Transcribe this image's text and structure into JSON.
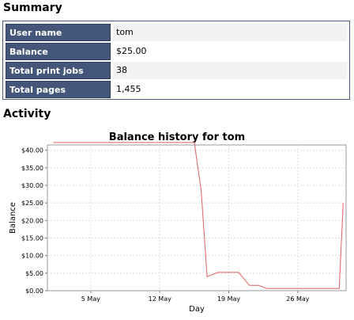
{
  "summary": {
    "title": "Summary",
    "rows": [
      {
        "label": "User name",
        "value": "tom"
      },
      {
        "label": "Balance",
        "value": "$25.00"
      },
      {
        "label": "Total print jobs",
        "value": "38"
      },
      {
        "label": "Total pages",
        "value": "1,455"
      }
    ]
  },
  "activity": {
    "title": "Activity"
  },
  "chart_data": {
    "type": "line",
    "title": "Balance history for tom",
    "xlabel": "Day",
    "ylabel": "Balance",
    "xlim": [
      0,
      30.3
    ],
    "ylim": [
      0,
      41.5
    ],
    "x_ticks": [
      {
        "x": 4.4,
        "label": "5 May"
      },
      {
        "x": 11.4,
        "label": "12 May"
      },
      {
        "x": 18.4,
        "label": "19 May"
      },
      {
        "x": 25.4,
        "label": "26 May"
      }
    ],
    "y_ticks": [
      {
        "y": 0,
        "label": "$0.00"
      },
      {
        "y": 5,
        "label": "$5.00"
      },
      {
        "y": 10,
        "label": "$10.00"
      },
      {
        "y": 15,
        "label": "$15.00"
      },
      {
        "y": 20,
        "label": "$20.00"
      },
      {
        "y": 25,
        "label": "$25.00"
      },
      {
        "y": 30,
        "label": "$30.00"
      },
      {
        "y": 35,
        "label": "$35.00"
      },
      {
        "y": 40,
        "label": "$40.00"
      }
    ],
    "grid": true,
    "line_color": "#e06060",
    "series": [
      {
        "x": [
          0.6,
          14.9,
          15.6,
          16.2,
          17.3,
          18.5,
          19.4,
          20.5,
          21.4,
          22.3,
          23.1,
          29.6,
          30.0
        ],
        "y": [
          42.2,
          42.2,
          28.5,
          4.0,
          5.2,
          5.2,
          5.2,
          1.5,
          1.5,
          0.6,
          0.6,
          0.6,
          25.0
        ]
      }
    ]
  }
}
